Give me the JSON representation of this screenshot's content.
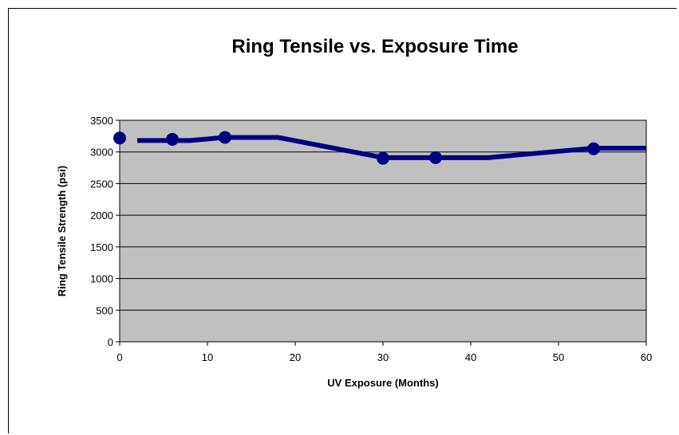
{
  "chart_data": {
    "type": "line",
    "title": "Ring Tensile vs. Exposure Time",
    "xlabel": "UV Exposure (Months)",
    "ylabel": "Ring Tensile Strength (psi)",
    "xlim": [
      0,
      60
    ],
    "ylim": [
      0,
      3500
    ],
    "x_ticks": [
      0,
      10,
      20,
      30,
      40,
      50,
      60
    ],
    "y_ticks": [
      0,
      500,
      1000,
      1500,
      2000,
      2500,
      3000,
      3500
    ],
    "grid": "horizontal",
    "legend": "none",
    "plot_background": "#c0c0c0",
    "line_color": "#000080",
    "series": [
      {
        "x": [
          0,
          6,
          12,
          30,
          36,
          54
        ],
        "y": [
          3220,
          3200,
          3230,
          2900,
          2910,
          3050
        ]
      }
    ],
    "line_path": {
      "x": [
        2,
        8,
        12,
        18,
        30,
        36,
        42,
        54,
        60
      ],
      "y": [
        3180,
        3180,
        3230,
        3230,
        2910,
        2910,
        2910,
        3060,
        3060
      ]
    }
  }
}
